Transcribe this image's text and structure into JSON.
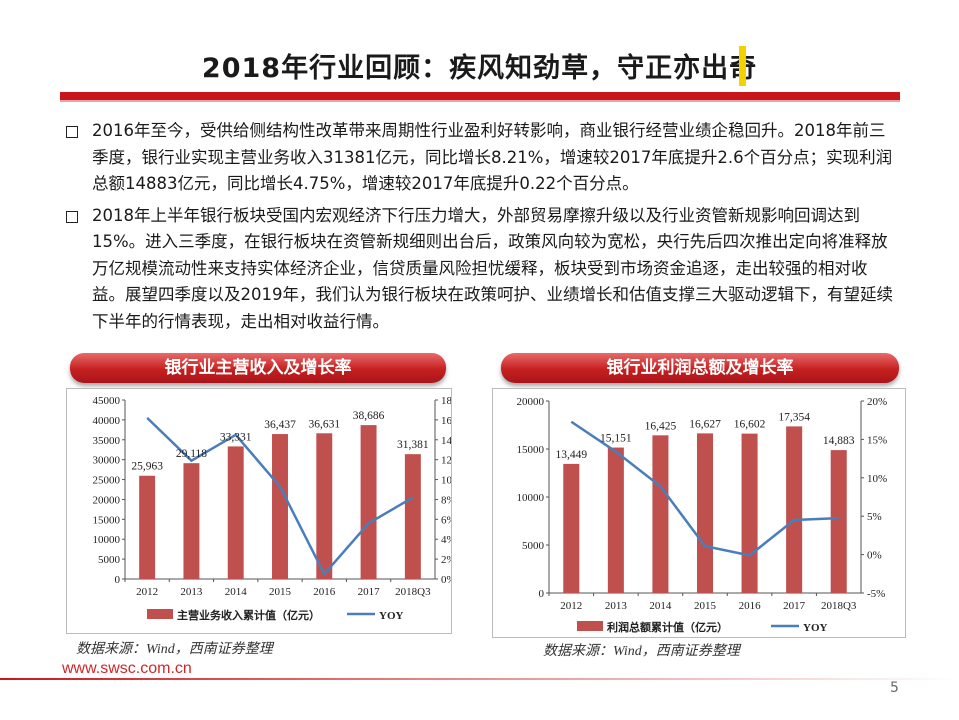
{
  "title": "2018年行业回顾：疾风知劲草，守正亦出奇",
  "bullets": [
    "2016年至今，受供给侧结构性改革带来周期性行业盈利好转影响，商业银行经营业绩企稳回升。2018年前三季度，银行业实现主营业务收入31381亿元，同比增长8.21%，增速较2017年底提升2.6个百分点；实现利润总额14883亿元，同比增长4.75%，增速较2017年底提升0.22个百分点。",
    "2018年上半年银行板块受国内宏观经济下行压力增大，外部贸易摩擦升级以及行业资管新规影响回调达到15%。进入三季度，在银行板块在资管新规细则出台后，政策风向较为宽松，央行先后四次推出定向将准释放万亿规模流动性来支持实体经济企业，信贷质量风险担忧缓释，板块受到市场资金追逐，走出较强的相对收益。展望四季度以及2019年，我们认为银行板块在政策呵护、业绩增长和估值支撑三大驱动逻辑下，有望延续下半年的行情表现，走出相对收益行情。"
  ],
  "colors": {
    "accent": "#c9161c",
    "bar": "#c0504d",
    "line": "#4a7ebb",
    "highlight": "#f4d100"
  },
  "source_text": "数据来源：Wind，西南证券整理",
  "site": "www.swsc.com.cn",
  "page_number": "5",
  "chart_data": [
    {
      "type": "bar",
      "title": "银行业主营收入及增长率",
      "categories": [
        "2012",
        "2013",
        "2014",
        "2015",
        "2016",
        "2017",
        "2018Q3"
      ],
      "series": [
        {
          "name": "主营业务收入累计值（亿元）",
          "type": "bar",
          "axis": "left",
          "values": [
            25963,
            29118,
            33331,
            36437,
            36631,
            38686,
            31381
          ]
        },
        {
          "name": "YOY",
          "type": "line",
          "axis": "right",
          "values": [
            16.2,
            11.9,
            14.5,
            9.3,
            0.5,
            5.6,
            8.2
          ]
        }
      ],
      "data_labels": [
        "25,963",
        "29,118",
        "33,331",
        "36,437",
        "36,631",
        "38,686",
        "31,381"
      ],
      "ylim_left": [
        0,
        45000
      ],
      "yticks_left": [
        "0",
        "5000",
        "10000",
        "15000",
        "20000",
        "25000",
        "30000",
        "35000",
        "40000",
        "45000"
      ],
      "ylim_right": [
        0,
        18
      ],
      "yticks_right": [
        "0%",
        "2%",
        "4%",
        "6%",
        "8%",
        "10%",
        "12%",
        "14%",
        "16%",
        "18%"
      ],
      "legend_placement": "bottom"
    },
    {
      "type": "bar",
      "title": "银行业利润总额及增长率",
      "categories": [
        "2012",
        "2013",
        "2014",
        "2015",
        "2016",
        "2017",
        "2018Q3"
      ],
      "series": [
        {
          "name": "利润总额累计值（亿元）",
          "type": "bar",
          "axis": "left",
          "values": [
            13449,
            15151,
            16425,
            16627,
            16602,
            17354,
            14883
          ]
        },
        {
          "name": "YOY",
          "type": "line",
          "axis": "right",
          "values": [
            17.3,
            13.4,
            8.9,
            1.1,
            -0.1,
            4.5,
            4.75
          ]
        }
      ],
      "data_labels": [
        "13,449",
        "15,151",
        "16,425",
        "16,627",
        "16,602",
        "17,354",
        "14,883"
      ],
      "ylim_left": [
        0,
        20000
      ],
      "yticks_left": [
        "0",
        "5000",
        "10000",
        "15000",
        "20000"
      ],
      "ylim_right": [
        -5,
        20
      ],
      "yticks_right": [
        "-5%",
        "0%",
        "5%",
        "10%",
        "15%",
        "20%"
      ],
      "legend_placement": "bottom"
    }
  ]
}
